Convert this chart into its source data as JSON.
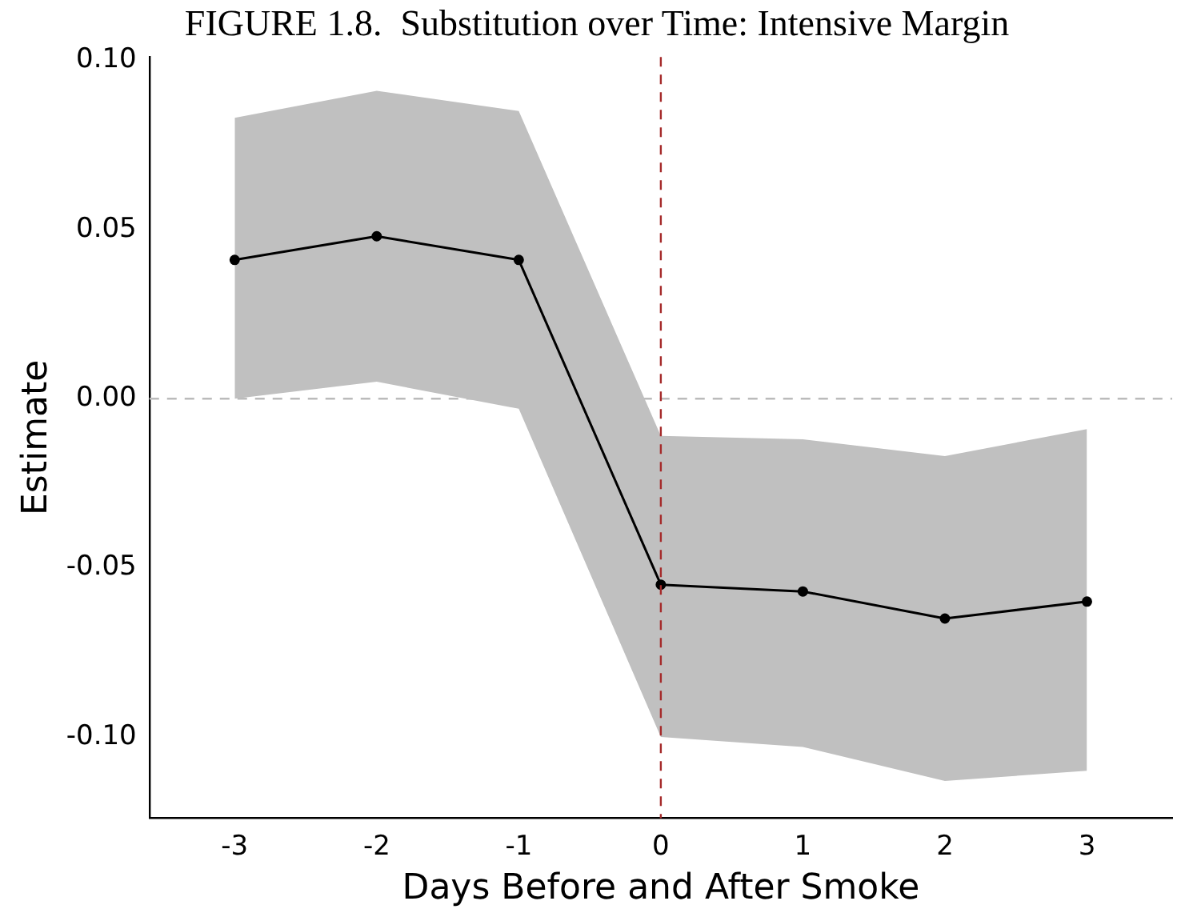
{
  "chart_data": {
    "type": "line",
    "title": "FIGURE 1.8.  Substitution over Time: Intensive Margin",
    "xlabel": "Days Before and After Smoke",
    "ylabel": "Estimate",
    "x": [
      -3,
      -2,
      -1,
      0,
      1,
      2,
      3
    ],
    "series": [
      {
        "color": "#000000",
        "values": [
          0.041,
          0.048,
          0.041,
          -0.055,
          -0.057,
          -0.065,
          -0.06
        ],
        "lower": [
          0.0,
          0.005,
          -0.003,
          -0.1,
          -0.103,
          -0.113,
          -0.11
        ],
        "upper": [
          0.083,
          0.091,
          0.085,
          -0.011,
          -0.012,
          -0.017,
          -0.009
        ]
      }
    ],
    "xlim": [
      -3.6,
      3.6
    ],
    "xticks": [
      -3,
      -2,
      -1,
      0,
      1,
      2,
      3
    ],
    "ylim": [
      -0.124,
      0.101
    ],
    "yticks": [
      {
        "value": -0.1,
        "label": "-0.10"
      },
      -0.05,
      {
        "value": 0,
        "label": "0.00"
      },
      0.05,
      {
        "value": 0.1,
        "label": "0.10"
      }
    ],
    "ref_lines": [
      {
        "axis": "y",
        "value": 0,
        "color": "#bbbbbb",
        "line_style": "dashed"
      },
      {
        "axis": "x",
        "value": 0,
        "color": "#a52a2a",
        "line_style": "dashed"
      }
    ],
    "grid": false,
    "legend": false,
    "marker": "circle",
    "line_style": "solid"
  }
}
